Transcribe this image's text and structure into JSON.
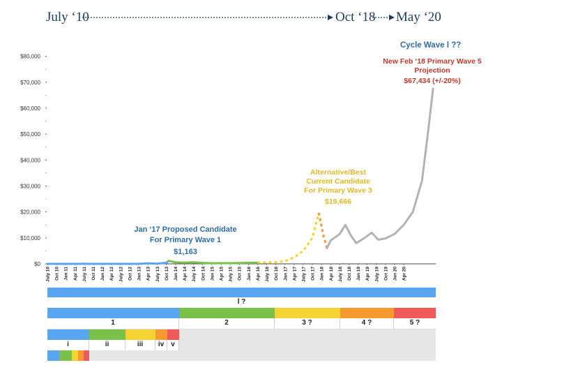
{
  "timeline": {
    "start": "July ‘10",
    "mid": "Oct ‘18",
    "end": "May ‘20"
  },
  "colors": {
    "blue": "#5aa5f0",
    "green": "#79c14a",
    "yellow": "#f5d233",
    "orange": "#f39b2e",
    "red": "#ec5a5a",
    "gray": "#b3b3b3",
    "dark_blue": "#2e6da4",
    "annotation_red": "#c0392b",
    "annotation_yellow": "#e0b82a"
  },
  "chart_data": {
    "type": "line",
    "y_ticks": [
      "$80,000",
      "$70,000",
      "$60,000",
      "$50,000",
      "$40,000",
      "$30,000",
      "$20,000",
      "$10,000",
      "$0"
    ],
    "ylim": [
      0,
      85000
    ],
    "x_ticks": [
      "July 10",
      "Oct 10",
      "Jan 11",
      "Apr 11",
      "July 11",
      "Oct 11",
      "Jan 12",
      "Apr 12",
      "July 12",
      "Oct 12",
      "Jan 13",
      "Apr 13",
      "July 13",
      "Oct 13",
      "Jan 14",
      "Apr 14",
      "July 14",
      "Oct 14",
      "Jan 15",
      "Apr 15",
      "July 15",
      "Oct 15",
      "Jan 16",
      "Apr 16",
      "July 16",
      "Oct 16",
      "Jan 17",
      "Apr 17",
      "July 17",
      "Oct 17",
      "Jan 18",
      "Apr 18",
      "July 18",
      "Oct 18",
      "Jan 19",
      "Apr 19",
      "July 19",
      "Oct 19",
      "Jan 20",
      "Apr 20"
    ],
    "series": [
      {
        "color": "#5aa5f0",
        "style": "solid",
        "points": [
          [
            0,
            0
          ],
          [
            3,
            1
          ],
          [
            4,
            15
          ],
          [
            5,
            3
          ],
          [
            6,
            5
          ],
          [
            8,
            10
          ],
          [
            10,
            13
          ],
          [
            11,
            200
          ],
          [
            12,
            90
          ],
          [
            13,
            400
          ],
          [
            13.3,
            1163
          ]
        ]
      },
      {
        "color": "#79c14a",
        "style": "solid",
        "points": [
          [
            13.3,
            1163
          ],
          [
            14,
            600
          ],
          [
            15,
            450
          ],
          [
            16,
            600
          ],
          [
            17,
            380
          ],
          [
            18,
            250
          ],
          [
            20,
            280
          ],
          [
            22,
            400
          ],
          [
            23,
            450
          ]
        ]
      },
      {
        "color": "#f5d233",
        "style": "dashed",
        "points": [
          [
            23,
            450
          ],
          [
            24,
            600
          ],
          [
            25,
            700
          ],
          [
            26,
            1000
          ],
          [
            27,
            2500
          ],
          [
            28,
            5000
          ],
          [
            29,
            10000
          ],
          [
            29.7,
            19666
          ]
        ]
      },
      {
        "color": "#f39b2e",
        "style": "dashed",
        "points": [
          [
            29.7,
            19666
          ],
          [
            30.2,
            11000
          ],
          [
            30.6,
            6000
          ]
        ]
      },
      {
        "color": "#b3b3b3",
        "style": "solid",
        "points": [
          [
            30.6,
            6000
          ],
          [
            31,
            9000
          ],
          [
            32,
            11500
          ],
          [
            32.6,
            15000
          ],
          [
            33.2,
            11000
          ],
          [
            33.8,
            8000
          ],
          [
            34.5,
            9500
          ],
          [
            35.5,
            12000
          ],
          [
            36.2,
            9300
          ],
          [
            37,
            9800
          ],
          [
            38,
            11500
          ],
          [
            39,
            15000
          ],
          [
            40,
            20000
          ],
          [
            41,
            32000
          ],
          [
            41.7,
            52000
          ],
          [
            42.2,
            67434
          ]
        ]
      }
    ],
    "x_max": 42.5,
    "annotations": {
      "cycle_wave": "Cycle Wave Ⅰ ??",
      "primary5_line1": "New Feb ‘18 Primary Wave 5",
      "primary5_line2": "Projection",
      "primary5_value": "$67,434 (+/-20%)",
      "alt_line1": "Alternative/Best",
      "alt_line2": "Current Candidate",
      "alt_line3": "For Primary Wave 3",
      "alt_value": "$19,666",
      "jan17_line1": "Jan ‘17 Proposed Candidate",
      "jan17_line2": "For Primary Wave 1",
      "jan17_value": "$1,163"
    }
  },
  "wave_labels": {
    "cycle": "Ⅰ ?",
    "primary": [
      "1",
      "2",
      "3 ?",
      "4 ?",
      "5 ?"
    ],
    "minor": [
      "i",
      "ii",
      "iii",
      "iv",
      "v"
    ]
  }
}
